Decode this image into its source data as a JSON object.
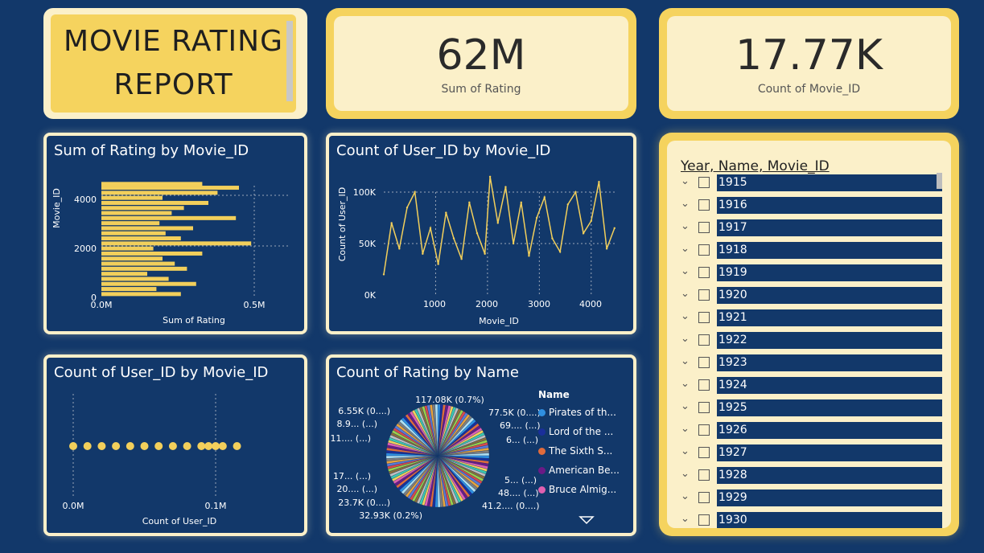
{
  "title": {
    "line1": "MOVIE RATING",
    "line2": "REPORT"
  },
  "kpis": [
    {
      "value": "62M",
      "label": "Sum of Rating"
    },
    {
      "value": "17.77K",
      "label": "Count of Movie_ID"
    }
  ],
  "charts": {
    "sum_rating": {
      "title": "Sum of Rating by Movie_ID",
      "xlabel": "Sum of Rating",
      "ylabel": "Movie_ID",
      "xticks": [
        "0.0M",
        "0.5M"
      ],
      "yticks": [
        "4000",
        "2000",
        "0"
      ]
    },
    "count_user_line": {
      "title": "Count of User_ID by Movie_ID",
      "xlabel": "Movie_ID",
      "ylabel": "Count of User_ID",
      "xticks": [
        "1000",
        "2000",
        "3000",
        "4000"
      ],
      "yticks": [
        "100K",
        "50K",
        "0K"
      ]
    },
    "count_user_scatter": {
      "title": "Count of User_ID by Movie_ID",
      "xlabel": "Count of User_ID",
      "xticks": [
        "0.0M",
        "0.1M"
      ]
    },
    "pie": {
      "title": "Count of Rating by Name",
      "legend_title": "Name",
      "legend": [
        {
          "name": "Pirates of th...",
          "color": "#2f8fe0"
        },
        {
          "name": "Lord of the ...",
          "color": "#1a2f9a"
        },
        {
          "name": "The Sixth S...",
          "color": "#e06b3c"
        },
        {
          "name": "American Be...",
          "color": "#6a1a86"
        },
        {
          "name": "Bruce Almig...",
          "color": "#e060b0"
        }
      ],
      "labels_left": [
        "6.55K (0....)",
        "8.9... (...)",
        "11.... (...)",
        "17... (...)",
        "20.... (...)",
        "23.7K (0....)"
      ],
      "labels_right": [
        "77.5K (0....)",
        "69.... (...)",
        "6... (...)",
        "5... (...)",
        "48.... (...)",
        "41.2.... (0....)"
      ],
      "label_top": "117.08K (0.7%)",
      "label_bottom": "32.93K (0.2%)"
    }
  },
  "chart_data": [
    {
      "type": "bar",
      "title": "Sum of Rating by Movie_ID",
      "xlabel": "Sum of Rating",
      "ylabel": "Movie_ID",
      "xlim": [
        0,
        500000
      ],
      "ylim": [
        0,
        4500
      ],
      "y": [
        100,
        300,
        500,
        700,
        900,
        1100,
        1300,
        1500,
        1700,
        1900,
        2100,
        2300,
        2500,
        2700,
        2900,
        3100,
        3300,
        3500,
        3700,
        3900,
        4100,
        4300,
        4450
      ],
      "values": [
        260000,
        180000,
        310000,
        220000,
        150000,
        280000,
        240000,
        200000,
        330000,
        170000,
        490000,
        260000,
        210000,
        300000,
        190000,
        440000,
        230000,
        270000,
        350000,
        200000,
        380000,
        450000,
        330000
      ]
    },
    {
      "type": "line",
      "title": "Count of User_ID by Movie_ID",
      "xlabel": "Movie_ID",
      "ylabel": "Count of User_ID",
      "xlim": [
        0,
        4500
      ],
      "ylim": [
        0,
        110000
      ],
      "x": [
        0,
        150,
        300,
        450,
        600,
        750,
        900,
        1050,
        1200,
        1350,
        1500,
        1650,
        1800,
        1950,
        2050,
        2200,
        2350,
        2500,
        2650,
        2800,
        2950,
        3100,
        3250,
        3400,
        3550,
        3700,
        3850,
        4000,
        4150,
        4300,
        4450
      ],
      "y": [
        20000,
        70000,
        45000,
        85000,
        100000,
        40000,
        65000,
        30000,
        80000,
        55000,
        35000,
        90000,
        60000,
        40000,
        115000,
        70000,
        105000,
        50000,
        90000,
        38000,
        75000,
        95000,
        55000,
        42000,
        88000,
        100000,
        60000,
        72000,
        110000,
        45000,
        65000
      ]
    },
    {
      "type": "scatter",
      "title": "Count of User_ID by Movie_ID",
      "xlabel": "Count of User_ID",
      "xlim": [
        0,
        130000
      ],
      "x": [
        0,
        10000,
        20000,
        30000,
        40000,
        50000,
        60000,
        70000,
        80000,
        90000,
        95000,
        100000,
        105000,
        115000
      ]
    },
    {
      "type": "pie",
      "title": "Count of Rating by Name",
      "slices": [
        {
          "name": "Pirates of th...",
          "value": 117080,
          "label": "117.08K (0.7%)"
        },
        {
          "name": "Lord of the ...",
          "value": 77500,
          "label": "77.5K (0....)"
        },
        {
          "name": "The Sixth S...",
          "value": 32930,
          "label": "32.93K (0.2%)"
        },
        {
          "name": "American Be...",
          "value": 23700,
          "label": "23.7K (0....)"
        },
        {
          "name": "Bruce Almig...",
          "value": 6550,
          "label": "6.55K (0....)"
        }
      ]
    }
  ],
  "slicer": {
    "header": "Year, Name, Movie_ID",
    "years": [
      "1915",
      "1916",
      "1917",
      "1918",
      "1919",
      "1920",
      "1921",
      "1922",
      "1923",
      "1924",
      "1925",
      "1926",
      "1927",
      "1928",
      "1929",
      "1930"
    ]
  }
}
